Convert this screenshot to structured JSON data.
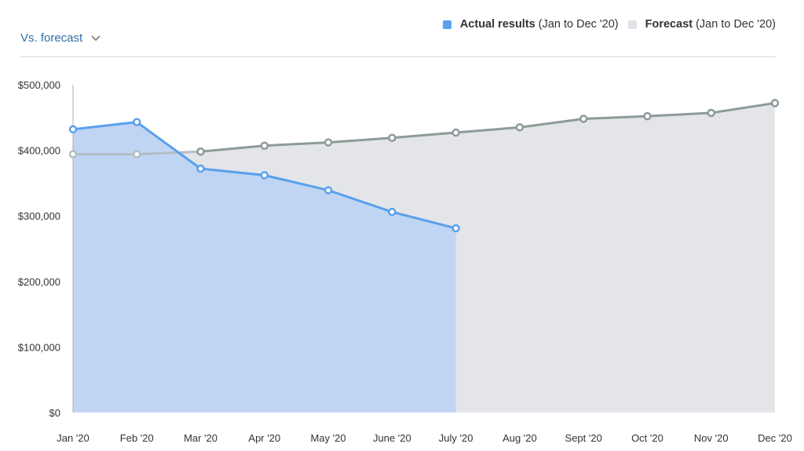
{
  "controls": {
    "comparison_label": "Vs. forecast",
    "comparison_icon": "chevron-down-icon"
  },
  "legend": [
    {
      "name": "Actual results",
      "range": "(Jan to Dec '20)",
      "color": "#5aa0ec"
    },
    {
      "name": "Forecast",
      "range": "(Jan to Dec '20)",
      "color": "#dfe3ea"
    }
  ],
  "chart_data": {
    "type": "area",
    "categories": [
      "Jan '20",
      "Feb '20",
      "Mar '20",
      "Apr '20",
      "May '20",
      "June '20",
      "July '20",
      "Aug '20",
      "Sept '20",
      "Oct '20",
      "Nov '20",
      "Dec '20"
    ],
    "series": [
      {
        "name": "Actual results",
        "color": "#5aa0ec",
        "fill": "#c0d5f3",
        "values": [
          432000,
          443000,
          372000,
          362000,
          339000,
          306000,
          281000,
          null,
          null,
          null,
          null,
          null
        ]
      },
      {
        "name": "Forecast",
        "color": "#8d9a9a",
        "fill": "#e3e5e9",
        "values": [
          394000,
          394000,
          398000,
          407000,
          412000,
          419000,
          427000,
          435000,
          448000,
          452000,
          457000,
          472000
        ]
      }
    ],
    "ylim": [
      0,
      500000
    ],
    "yticks": [
      0,
      100000,
      200000,
      300000,
      400000,
      500000
    ],
    "ytick_labels": [
      "$0",
      "$100,000",
      "$200,000",
      "$300,000",
      "$400,000",
      "$500,000"
    ],
    "legend_position": "top-right",
    "grid": false
  }
}
